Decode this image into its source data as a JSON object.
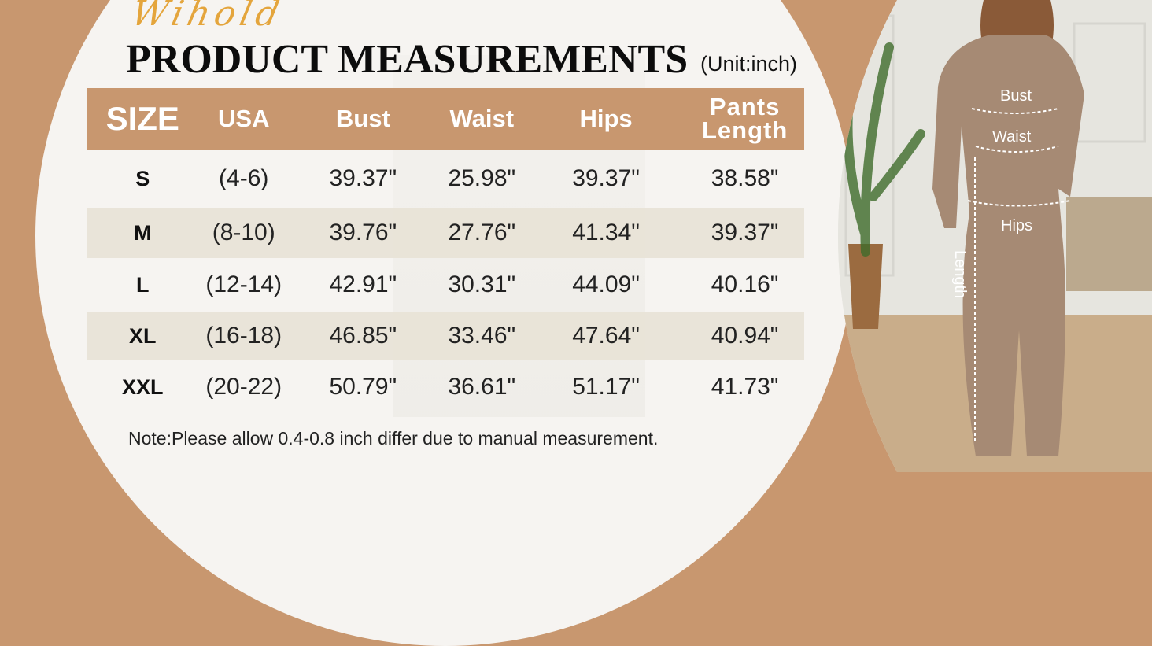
{
  "brand_logo": "Wihold",
  "title": "PRODUCT MEASUREMENTS",
  "unit": "(Unit:inch)",
  "colors": {
    "header": "#c8976f",
    "alt_row": "#e8e2d6",
    "accent_logo": "#e4a53c"
  },
  "table": {
    "headers": [
      "SIZE",
      "USA",
      "Bust",
      "Waist",
      "Hips",
      "Pants Length"
    ],
    "rows": [
      [
        "S",
        "(4-6)",
        "39.37\"",
        "25.98\"",
        "39.37\"",
        "38.58\""
      ],
      [
        "M",
        "(8-10)",
        "39.76\"",
        "27.76\"",
        "41.34\"",
        "39.37\""
      ],
      [
        "L",
        "(12-14)",
        "42.91\"",
        "30.31\"",
        "44.09\"",
        "40.16\""
      ],
      [
        "XL",
        "(16-18)",
        "46.85\"",
        "33.46\"",
        "47.64\"",
        "40.94\""
      ],
      [
        "XXL",
        "(20-22)",
        "50.79\"",
        "36.61\"",
        "51.17\"",
        "41.73\""
      ]
    ]
  },
  "note": "Note:Please allow 0.4-0.8 inch differ due to manual measurement.",
  "photo_labels": {
    "bust": "Bust",
    "waist": "Waist",
    "hips": "Hips",
    "length": "Length"
  }
}
